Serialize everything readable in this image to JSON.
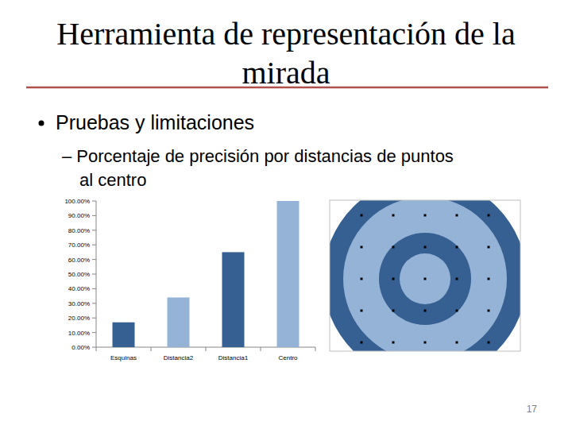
{
  "slide": {
    "title": [
      "Herramienta de representación de la",
      "mirada"
    ],
    "bullet": "Pruebas y limitaciones",
    "sub_bullet": [
      "– Porcentaje de precisión por distancias de puntos",
      "al centro"
    ],
    "page": "17"
  },
  "chart_data": {
    "type": "bar",
    "categories": [
      "Esquinas",
      "Distancia2",
      "Distancia1",
      "Centro"
    ],
    "values": [
      17,
      34,
      65,
      100
    ],
    "colors": [
      "#366092",
      "#95b3d7",
      "#366092",
      "#95b3d7"
    ],
    "ylim": [
      0,
      100
    ],
    "yticks": [
      {
        "value": 0,
        "label": "0.00%"
      },
      {
        "value": 10,
        "label": "10.00%"
      },
      {
        "value": 20,
        "label": "20.00%"
      },
      {
        "value": 30,
        "label": "30.00%"
      },
      {
        "value": 40,
        "label": "40.00%"
      },
      {
        "value": 50,
        "label": "50.00%"
      },
      {
        "value": 60,
        "label": "60.00%"
      },
      {
        "value": 70,
        "label": "70.00%"
      },
      {
        "value": 80,
        "label": "80.00%"
      },
      {
        "value": 90,
        "label": "90.00%"
      },
      {
        "value": 100,
        "label": "100.00%"
      }
    ],
    "grid": false
  }
}
